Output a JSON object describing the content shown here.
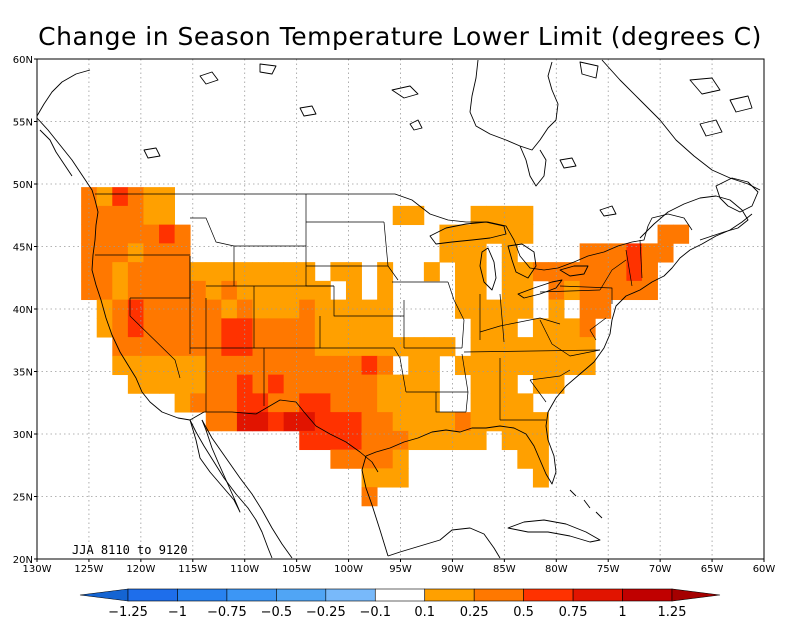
{
  "title": "Change in Season Temperature Lower Limit (degrees C)",
  "annotation": "JJA 8110 to 9120",
  "lon_range": [
    -130,
    -60
  ],
  "lat_range": [
    20,
    60
  ],
  "lon_ticks": [
    {
      "v": -130,
      "label": "130W"
    },
    {
      "v": -125,
      "label": "125W"
    },
    {
      "v": -120,
      "label": "120W"
    },
    {
      "v": -115,
      "label": "115W"
    },
    {
      "v": -110,
      "label": "110W"
    },
    {
      "v": -105,
      "label": "105W"
    },
    {
      "v": -100,
      "label": "100W"
    },
    {
      "v": -95,
      "label": "95W"
    },
    {
      "v": -90,
      "label": "90W"
    },
    {
      "v": -85,
      "label": "85W"
    },
    {
      "v": -80,
      "label": "80W"
    },
    {
      "v": -75,
      "label": "75W"
    },
    {
      "v": -70,
      "label": "70W"
    },
    {
      "v": -65,
      "label": "65W"
    },
    {
      "v": -60,
      "label": "60W"
    }
  ],
  "lat_ticks": [
    {
      "v": 20,
      "label": "20N"
    },
    {
      "v": 25,
      "label": "25N"
    },
    {
      "v": 30,
      "label": "30N"
    },
    {
      "v": 35,
      "label": "35N"
    },
    {
      "v": 40,
      "label": "40N"
    },
    {
      "v": 45,
      "label": "45N"
    },
    {
      "v": 50,
      "label": "50N"
    },
    {
      "v": 55,
      "label": "55N"
    },
    {
      "v": 60,
      "label": "60N"
    }
  ],
  "colorbar": {
    "colors": [
      "#1464d2",
      "#1e6eeb",
      "#2882f0",
      "#3c96f5",
      "#50a5f5",
      "#78b9fa",
      "#ffffff",
      "#ffa000",
      "#ff7800",
      "#ff3200",
      "#e11400",
      "#c00000",
      "#a50000"
    ],
    "labels": [
      "-1.25",
      "-1",
      "-0.75",
      "-0.5",
      "-0.25",
      "-0.1",
      "0.1",
      "0.25",
      "0.5",
      "0.75",
      "1",
      "1.25"
    ]
  },
  "chart_data": {
    "type": "heatmap",
    "title": "Change in Season Temperature Lower Limit (degrees C)",
    "grid": "on",
    "cell_size_deg": 1.5,
    "class_colors": {
      "1": "#ffa000",
      "2": "#ff7800",
      "3": "#ff3200",
      "4": "#e11400"
    },
    "class_ranges": {
      "1": "0.1 to 0.25",
      "2": "0.25 to 0.5",
      "3": "0.5 to 0.75",
      "4": "0.75 to 1"
    },
    "cells": [
      {
        "lat": 49.0,
        "lons": [
          -125.0,
          -123.5,
          -122.0,
          -120.5,
          -119.0,
          -117.5
        ],
        "vals": [
          2,
          1,
          3,
          2,
          1,
          1
        ]
      },
      {
        "lat": 47.5,
        "lons": [
          -125.0,
          -123.5,
          -122.0,
          -120.5,
          -119.0,
          -117.5,
          -95.0,
          -93.5,
          -87.5,
          -86.0,
          -84.5,
          -83.0
        ],
        "vals": [
          2,
          2,
          2,
          2,
          1,
          1,
          1,
          1,
          1,
          1,
          1,
          1
        ]
      },
      {
        "lat": 46.0,
        "lons": [
          -125.0,
          -123.5,
          -122.0,
          -120.5,
          -119.0,
          -117.5,
          -116.0,
          -90.5,
          -89.0,
          -87.5,
          -86.0,
          -84.5,
          -83.0,
          -69.5,
          -68.0
        ],
        "vals": [
          2,
          2,
          2,
          2,
          2,
          3,
          2,
          1,
          1,
          1,
          1,
          1,
          1,
          2,
          2
        ]
      },
      {
        "lat": 44.5,
        "lons": [
          -125.0,
          -123.5,
          -122.0,
          -120.5,
          -119.0,
          -117.5,
          -116.0,
          -90.5,
          -89.0,
          -87.5,
          -84.5,
          -77.0,
          -75.5,
          -74.0,
          -72.5,
          -71.0,
          -69.5
        ],
        "vals": [
          2,
          2,
          2,
          1,
          2,
          2,
          2,
          1,
          1,
          1,
          1,
          2,
          2,
          2,
          3,
          2,
          2
        ]
      },
      {
        "lat": 43.0,
        "lons": [
          -125.0,
          -123.5,
          -122.0,
          -120.5,
          -119.0,
          -117.5,
          -116.0,
          -114.5,
          -113.0,
          -111.5,
          -110.0,
          -108.5,
          -107.0,
          -105.5,
          -104.0,
          -101.0,
          -99.5,
          -96.5,
          -92.0,
          -89.0,
          -87.5,
          -84.5,
          -83.0,
          -81.5,
          -80.0,
          -78.5,
          -77.0,
          -75.5,
          -74.0,
          -72.5,
          -71.0
        ],
        "vals": [
          2,
          2,
          1,
          2,
          2,
          2,
          2,
          1,
          1,
          1,
          1,
          1,
          1,
          1,
          1,
          1,
          1,
          1,
          1,
          1,
          1,
          1,
          1,
          2,
          2,
          2,
          2,
          2,
          2,
          3,
          2
        ]
      },
      {
        "lat": 41.5,
        "lons": [
          -125.0,
          -123.5,
          -122.0,
          -120.5,
          -119.0,
          -117.5,
          -116.0,
          -114.5,
          -113.0,
          -111.5,
          -110.0,
          -108.5,
          -107.0,
          -105.5,
          -104.0,
          -102.5,
          -99.5,
          -96.5,
          -89.0,
          -87.5,
          -84.5,
          -83.0,
          -80.0,
          -78.5,
          -77.0,
          -75.5,
          -74.0,
          -72.5,
          -71.0
        ],
        "vals": [
          2,
          2,
          1,
          2,
          2,
          2,
          2,
          2,
          1,
          2,
          1,
          1,
          1,
          1,
          1,
          1,
          1,
          1,
          1,
          1,
          1,
          1,
          2,
          1,
          2,
          2,
          2,
          2,
          2
        ]
      },
      {
        "lat": 40.0,
        "lons": [
          -123.5,
          -122.0,
          -120.5,
          -119.0,
          -117.5,
          -116.0,
          -114.5,
          -113.0,
          -111.5,
          -110.0,
          -108.5,
          -107.0,
          -105.5,
          -104.0,
          -102.5,
          -101.0,
          -99.5,
          -98.0,
          -96.5,
          -89.0,
          -87.5,
          -86.0,
          -84.5,
          -83.0,
          -80.0,
          -77.0,
          -75.5
        ],
        "vals": [
          1,
          2,
          3,
          2,
          2,
          2,
          2,
          2,
          1,
          2,
          1,
          1,
          1,
          2,
          1,
          1,
          1,
          1,
          1,
          1,
          1,
          1,
          1,
          1,
          1,
          2,
          2
        ]
      },
      {
        "lat": 38.5,
        "lons": [
          -123.5,
          -122.0,
          -120.5,
          -119.0,
          -117.5,
          -116.0,
          -114.5,
          -113.0,
          -111.5,
          -110.0,
          -108.5,
          -107.0,
          -105.5,
          -104.0,
          -102.5,
          -101.0,
          -99.5,
          -98.0,
          -96.5,
          -87.5,
          -86.0,
          -84.5,
          -81.5,
          -80.0,
          -78.5,
          -77.0
        ],
        "vals": [
          1,
          2,
          3,
          2,
          2,
          2,
          2,
          2,
          3,
          3,
          2,
          2,
          2,
          2,
          1,
          1,
          1,
          1,
          1,
          1,
          1,
          1,
          1,
          1,
          1,
          2
        ]
      },
      {
        "lat": 37.0,
        "lons": [
          -122.0,
          -120.5,
          -119.0,
          -117.5,
          -116.0,
          -114.5,
          -113.0,
          -111.5,
          -110.0,
          -108.5,
          -107.0,
          -105.5,
          -104.0,
          -102.5,
          -101.0,
          -99.5,
          -98.0,
          -96.5,
          -95.0,
          -93.5,
          -92.0,
          -90.5,
          -87.5,
          -86.0,
          -84.5,
          -83.0,
          -81.5,
          -80.0,
          -78.5,
          -77.0
        ],
        "vals": [
          2,
          2,
          2,
          2,
          2,
          2,
          2,
          3,
          3,
          2,
          2,
          2,
          2,
          1,
          1,
          1,
          1,
          1,
          1,
          1,
          1,
          1,
          1,
          1,
          1,
          1,
          1,
          1,
          1,
          1
        ]
      },
      {
        "lat": 35.5,
        "lons": [
          -122.0,
          -120.5,
          -119.0,
          -117.5,
          -116.0,
          -114.5,
          -113.0,
          -111.5,
          -110.0,
          -108.5,
          -107.0,
          -105.5,
          -104.0,
          -102.5,
          -101.0,
          -99.5,
          -98.0,
          -96.5,
          -93.5,
          -92.0,
          -89.0,
          -87.5,
          -86.0,
          -84.5,
          -83.0,
          -81.5,
          -80.0,
          -78.5,
          -77.0
        ],
        "vals": [
          1,
          1,
          1,
          1,
          1,
          1,
          2,
          2,
          2,
          2,
          2,
          2,
          2,
          2,
          2,
          2,
          3,
          2,
          1,
          1,
          1,
          1,
          1,
          1,
          1,
          1,
          1,
          1,
          1
        ]
      },
      {
        "lat": 34.0,
        "lons": [
          -120.5,
          -119.0,
          -117.5,
          -116.0,
          -114.5,
          -113.0,
          -111.5,
          -110.0,
          -108.5,
          -107.0,
          -105.5,
          -104.0,
          -102.5,
          -101.0,
          -99.5,
          -98.0,
          -96.5,
          -95.0,
          -93.5,
          -92.0,
          -87.5,
          -86.0,
          -84.5,
          -81.5,
          -80.0
        ],
        "vals": [
          1,
          1,
          1,
          1,
          1,
          2,
          2,
          3,
          2,
          3,
          2,
          2,
          2,
          2,
          2,
          2,
          1,
          1,
          1,
          1,
          1,
          1,
          1,
          1,
          1
        ]
      },
      {
        "lat": 32.5,
        "lons": [
          -116.0,
          -114.5,
          -113.0,
          -111.5,
          -110.0,
          -108.5,
          -107.0,
          -105.5,
          -104.0,
          -102.5,
          -101.0,
          -99.5,
          -98.0,
          -96.5,
          -95.0,
          -93.5,
          -92.0,
          -87.5,
          -86.0,
          -84.5,
          -83.0
        ],
        "vals": [
          1,
          2,
          2,
          2,
          3,
          3,
          2,
          2,
          3,
          3,
          2,
          2,
          2,
          1,
          1,
          1,
          1,
          1,
          1,
          1,
          1
        ]
      },
      {
        "lat": 31.0,
        "lons": [
          -113.0,
          -111.5,
          -110.0,
          -108.5,
          -107.0,
          -105.5,
          -104.0,
          -102.5,
          -101.0,
          -99.5,
          -98.0,
          -96.5,
          -95.0,
          -93.5,
          -92.0,
          -90.5,
          -89.0,
          -87.5,
          -86.0,
          -84.5,
          -83.0,
          -81.5
        ],
        "vals": [
          2,
          2,
          4,
          4,
          3,
          4,
          4,
          3,
          3,
          3,
          2,
          2,
          1,
          1,
          1,
          1,
          2,
          1,
          1,
          1,
          1,
          1
        ]
      },
      {
        "lat": 29.5,
        "lons": [
          -104.0,
          -102.5,
          -101.0,
          -99.5,
          -98.0,
          -96.5,
          -95.0,
          -93.5,
          -92.0,
          -90.5,
          -89.0,
          -87.5,
          -84.5,
          -83.0,
          -81.5
        ],
        "vals": [
          3,
          3,
          3,
          3,
          2,
          2,
          2,
          1,
          1,
          1,
          1,
          1,
          1,
          1,
          1
        ]
      },
      {
        "lat": 28.0,
        "lons": [
          -101.0,
          -99.5,
          -98.0,
          -96.5,
          -95.0,
          -83.0,
          -81.5
        ],
        "vals": [
          2,
          2,
          2,
          2,
          1,
          1,
          1
        ]
      },
      {
        "lat": 26.5,
        "lons": [
          -98.0,
          -96.5,
          -95.0,
          -81.5
        ],
        "vals": [
          1,
          1,
          1,
          1
        ]
      },
      {
        "lat": 25.0,
        "lons": [
          -98.0
        ],
        "vals": [
          2
        ]
      }
    ]
  }
}
